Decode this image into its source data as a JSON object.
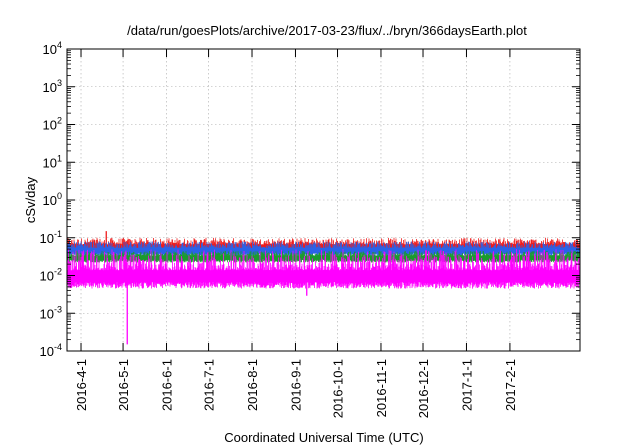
{
  "chart_data": {
    "type": "line",
    "title": "/data/run/goesPlots/archive/2017-03-23/flux/../bryn/366daysEarth.plot",
    "xlabel": "Coordinated Universal Time (UTC)",
    "ylabel": "cSv/day",
    "y_scale": "log",
    "ylim": [
      0.0001,
      10000
    ],
    "xlim": [
      "2016-03-22",
      "2017-03-23"
    ],
    "y_ticks": [
      {
        "base": "10",
        "exp": "-4",
        "value": 0.0001
      },
      {
        "base": "10",
        "exp": "-3",
        "value": 0.001
      },
      {
        "base": "10",
        "exp": "-2",
        "value": 0.01
      },
      {
        "base": "10",
        "exp": "-1",
        "value": 0.1
      },
      {
        "base": "10",
        "exp": "0",
        "value": 1
      },
      {
        "base": "10",
        "exp": "1",
        "value": 10
      },
      {
        "base": "10",
        "exp": "2",
        "value": 100
      },
      {
        "base": "10",
        "exp": "3",
        "value": 1000
      },
      {
        "base": "10",
        "exp": "4",
        "value": 10000
      }
    ],
    "x_ticks": [
      "2016-4-1",
      "2016-5-1",
      "2016-6-1",
      "2016-7-1",
      "2016-8-1",
      "2016-9-1",
      "2016-10-1",
      "2016-11-1",
      "2016-12-1",
      "2017-1-1",
      "2017-2-1"
    ],
    "x_tick_dates": [
      "2016-04-01",
      "2016-05-01",
      "2016-06-01",
      "2016-07-01",
      "2016-08-01",
      "2016-09-01",
      "2016-10-01",
      "2016-11-01",
      "2016-12-01",
      "2017-01-01",
      "2017-02-01"
    ],
    "grid": true,
    "legend": "none",
    "series": [
      {
        "color": "#ee1c1c",
        "typical": 0.062,
        "band_low": 0.04,
        "band_high": 0.1,
        "spikes": [
          [
            "2016-04-19",
            0.15
          ]
        ]
      },
      {
        "color": "#2a62e8",
        "typical": 0.05,
        "band_low": 0.032,
        "band_high": 0.08
      },
      {
        "color": "#1b9a2e",
        "typical": 0.032,
        "band_low": 0.022,
        "band_high": 0.045
      },
      {
        "color": "#ff00ff",
        "typical": 0.011,
        "band_low": 0.0045,
        "band_high": 0.05,
        "dips": [
          [
            "2016-05-04",
            0.00015
          ],
          [
            "2016-09-09",
            0.0029
          ]
        ]
      }
    ]
  }
}
